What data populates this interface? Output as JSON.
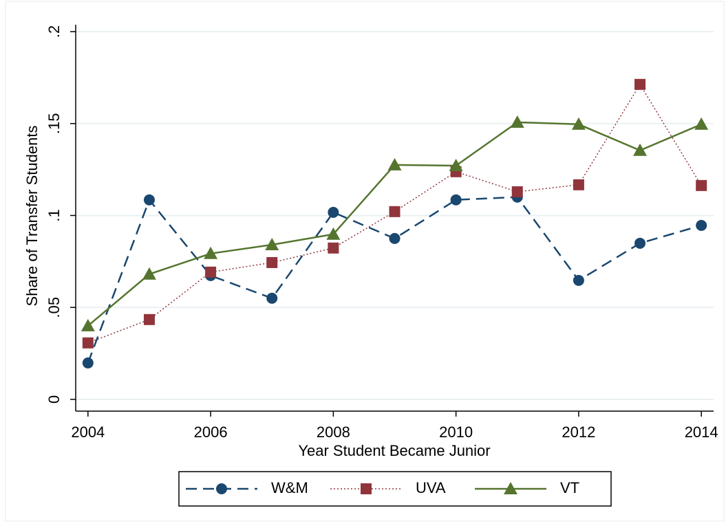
{
  "chart_data": {
    "type": "line",
    "xlabel": "Year Student Became Junior",
    "ylabel": "Share of Transfer Students",
    "x": [
      2004,
      2005,
      2006,
      2007,
      2008,
      2009,
      2010,
      2011,
      2012,
      2013,
      2014
    ],
    "series": [
      {
        "name": "W&M",
        "color": "#1a476f",
        "line_style": "dashed",
        "marker": "circle",
        "values": [
          0.0198,
          0.1085,
          0.0673,
          0.055,
          0.1017,
          0.0875,
          0.1085,
          0.11,
          0.0647,
          0.0849,
          0.0946
        ]
      },
      {
        "name": "UVA",
        "color": "#90353b",
        "line_style": "dotted",
        "marker": "square",
        "values": [
          0.0307,
          0.0434,
          0.0692,
          0.0744,
          0.0823,
          0.1021,
          0.1238,
          0.1129,
          0.1167,
          0.1713,
          0.1163
        ]
      },
      {
        "name": "VT",
        "color": "#55752f",
        "line_style": "solid",
        "marker": "triangle",
        "values": [
          0.04,
          0.0681,
          0.0793,
          0.0841,
          0.0898,
          0.1275,
          0.1271,
          0.1507,
          0.1496,
          0.1354,
          0.1496
        ]
      }
    ],
    "xlim": [
      2003.8,
      2014.2
    ],
    "xticks": [
      2004,
      2006,
      2008,
      2010,
      2012,
      2014
    ],
    "ylim": [
      -0.0064,
      0.2
    ],
    "yticks": [
      0,
      {
        "value": 0.05,
        "label": ".05"
      },
      {
        "value": 0.1,
        "label": ".1"
      },
      {
        "value": 0.15,
        "label": ".15"
      },
      {
        "value": 0.2,
        "label": ".2"
      }
    ],
    "grid": true,
    "legend": "bottom"
  }
}
